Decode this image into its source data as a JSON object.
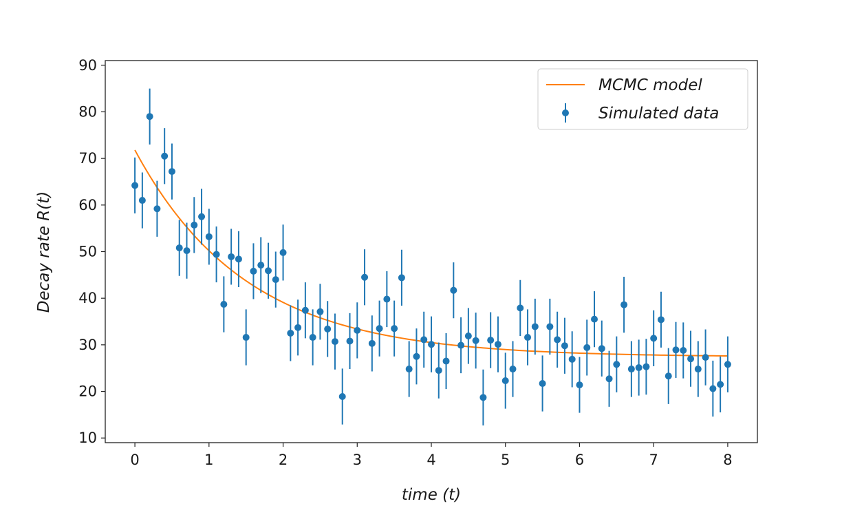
{
  "chart_data": {
    "type": "scatter",
    "xlabel": "time (t)",
    "ylabel": "Decay rate R(t)",
    "xlim": [
      -0.4,
      8.4
    ],
    "ylim": [
      9,
      91
    ],
    "xticks": [
      0,
      1,
      2,
      3,
      4,
      5,
      6,
      7,
      8
    ],
    "yticks": [
      10,
      20,
      30,
      40,
      50,
      60,
      70,
      80,
      90
    ],
    "grid": false,
    "legend_position": "top-right",
    "colors": {
      "data": "#1f77b4",
      "model": "#ff7f0e"
    },
    "series": [
      {
        "name": "MCMC model",
        "kind": "line",
        "model": {
          "form": "A*exp(-x/tau)+C",
          "A": 44.4,
          "tau": 1.5,
          "C": 27.4
        },
        "x_range": [
          0,
          8
        ]
      },
      {
        "name": "Simulated data",
        "kind": "errorbar",
        "x": [
          0.0,
          0.1,
          0.2,
          0.3,
          0.4,
          0.5,
          0.6,
          0.7,
          0.8,
          0.9,
          1.0,
          1.1,
          1.2,
          1.3,
          1.4,
          1.5,
          1.6,
          1.7,
          1.8,
          1.9,
          2.0,
          2.1,
          2.2,
          2.3,
          2.4,
          2.5,
          2.6,
          2.7,
          2.8,
          2.9,
          3.0,
          3.1,
          3.2,
          3.3,
          3.4,
          3.5,
          3.6,
          3.7,
          3.8,
          3.9,
          4.0,
          4.1,
          4.2,
          4.3,
          4.4,
          4.5,
          4.6,
          4.7,
          4.8,
          4.9,
          5.0,
          5.1,
          5.2,
          5.3,
          5.4,
          5.5,
          5.6,
          5.7,
          5.8,
          5.9,
          6.0,
          6.1,
          6.2,
          6.3,
          6.4,
          6.5,
          6.6,
          6.7,
          6.8,
          6.9,
          7.0,
          7.1,
          7.2,
          7.3,
          7.4,
          7.5,
          7.6,
          7.7,
          7.8,
          7.9,
          8.0
        ],
        "y": [
          64.2,
          61.0,
          79.0,
          59.2,
          70.5,
          67.2,
          50.8,
          50.2,
          55.7,
          57.5,
          53.2,
          49.4,
          38.7,
          48.9,
          48.4,
          31.6,
          45.8,
          47.1,
          45.9,
          44.0,
          49.8,
          32.5,
          33.7,
          37.4,
          31.6,
          37.1,
          33.4,
          30.7,
          18.9,
          30.8,
          33.1,
          44.5,
          30.3,
          33.5,
          39.8,
          33.5,
          44.4,
          24.8,
          27.5,
          31.1,
          30.1,
          24.5,
          26.5,
          41.7,
          29.9,
          31.9,
          30.9,
          18.7,
          31.0,
          30.1,
          22.3,
          24.8,
          37.9,
          31.6,
          33.9,
          21.7,
          33.9,
          31.1,
          29.8,
          26.9,
          21.4,
          29.4,
          35.5,
          29.2,
          22.7,
          25.8,
          38.6,
          24.8,
          25.1,
          25.3,
          31.4,
          35.4,
          23.3,
          28.9,
          28.8,
          27.0,
          24.8,
          27.3,
          20.6,
          21.5,
          25.8
        ],
        "yerr": 6.0
      }
    ]
  }
}
